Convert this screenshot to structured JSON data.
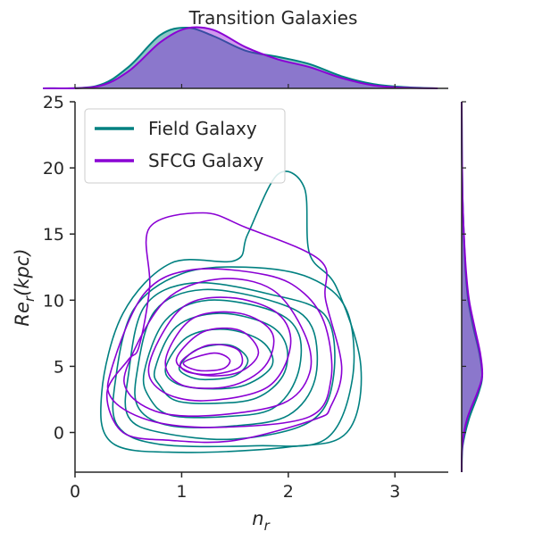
{
  "chart_data": {
    "type": "kde-joint",
    "title": "Transition Galaxies",
    "xlabel_base": "n",
    "xlabel_sub": "r",
    "ylabel_base": "Re",
    "ylabel_sub": "r",
    "ylabel_suffix": "(kpc)",
    "xlim": [
      0,
      3.5
    ],
    "ylim": [
      -3,
      25
    ],
    "xticks": [
      0,
      1,
      2,
      3
    ],
    "yticks": [
      0,
      5,
      10,
      15,
      20,
      25
    ],
    "grid": false,
    "legend_placement": "top-left",
    "series": [
      {
        "name": "Field Galaxy",
        "color": "#008080",
        "contours": [
          [
            [
              0.25,
              3
            ],
            [
              0.45,
              9
            ],
            [
              0.9,
              12.8
            ],
            [
              1.5,
              13
            ],
            [
              1.62,
              15
            ],
            [
              1.9,
              19.5
            ],
            [
              2.15,
              18.5
            ],
            [
              2.2,
              13.5
            ],
            [
              2.45,
              11
            ],
            [
              2.68,
              5
            ],
            [
              2.55,
              0
            ],
            [
              2,
              -1.1
            ],
            [
              1,
              -1.5
            ],
            [
              0.35,
              -0.8
            ]
          ],
          [
            [
              0.38,
              4
            ],
            [
              0.55,
              9.3
            ],
            [
              1,
              12
            ],
            [
              1.6,
              12.5
            ],
            [
              2.2,
              11.7
            ],
            [
              2.55,
              9.2
            ],
            [
              2.6,
              4
            ],
            [
              2.35,
              -0.5
            ],
            [
              1.7,
              -1
            ],
            [
              0.8,
              -0.9
            ],
            [
              0.4,
              0.5
            ]
          ],
          [
            [
              0.5,
              4.3
            ],
            [
              0.65,
              9.5
            ],
            [
              1.1,
              11.3
            ],
            [
              1.8,
              10.5
            ],
            [
              2.35,
              8.8
            ],
            [
              2.42,
              4
            ],
            [
              2.2,
              0.8
            ],
            [
              1.5,
              -0.5
            ],
            [
              0.8,
              0
            ],
            [
              0.5,
              1.2
            ]
          ],
          [
            [
              0.58,
              4.5
            ],
            [
              0.75,
              9.2
            ],
            [
              1.2,
              10.8
            ],
            [
              1.9,
              9.8
            ],
            [
              2.22,
              8
            ],
            [
              2.25,
              4
            ],
            [
              2,
              1.3
            ],
            [
              1.5,
              0.5
            ],
            [
              0.9,
              0.5
            ],
            [
              0.6,
              1.8
            ]
          ],
          [
            [
              0.65,
              4.6
            ],
            [
              0.85,
              8.5
            ],
            [
              1.25,
              10
            ],
            [
              1.85,
              9.2
            ],
            [
              2.1,
              7.4
            ],
            [
              2.08,
              4.2
            ],
            [
              1.85,
              1.8
            ],
            [
              1.4,
              1.2
            ],
            [
              0.9,
              1.3
            ],
            [
              0.7,
              2.6
            ]
          ],
          [
            [
              0.75,
              4.8
            ],
            [
              0.95,
              8
            ],
            [
              1.35,
              9
            ],
            [
              1.8,
              8.2
            ],
            [
              1.98,
              6.6
            ],
            [
              1.95,
              4.3
            ],
            [
              1.7,
              2.6
            ],
            [
              1.3,
              2.2
            ],
            [
              0.95,
              2.4
            ],
            [
              0.8,
              3.5
            ]
          ],
          [
            [
              0.85,
              4.9
            ],
            [
              1.05,
              7.2
            ],
            [
              1.4,
              7.8
            ],
            [
              1.75,
              6.9
            ],
            [
              1.85,
              5.1
            ],
            [
              1.6,
              3.6
            ],
            [
              1.25,
              3.3
            ],
            [
              0.95,
              3.7
            ]
          ],
          [
            [
              0.98,
              5
            ],
            [
              1.15,
              6.3
            ],
            [
              1.45,
              6.6
            ],
            [
              1.62,
              5.5
            ],
            [
              1.5,
              4.3
            ],
            [
              1.22,
              4
            ],
            [
              1.05,
              4.3
            ]
          ]
        ]
      },
      {
        "name": "SFCG Galaxy",
        "color": "#8a00d4",
        "contours": [
          [
            [
              0.6,
              6.5
            ],
            [
              0.7,
              11
            ],
            [
              0.7,
              15.5
            ],
            [
              1.2,
              16.6
            ],
            [
              1.6,
              15.5
            ],
            [
              2.3,
              13
            ],
            [
              2.35,
              10
            ],
            [
              2.5,
              5
            ],
            [
              2.4,
              2
            ],
            [
              2.25,
              1
            ],
            [
              1.5,
              -0.6
            ],
            [
              0.9,
              -0.6
            ],
            [
              0.45,
              0
            ],
            [
              0.3,
              3
            ],
            [
              0.5,
              5.5
            ]
          ],
          [
            [
              0.35,
              5
            ],
            [
              0.65,
              10.5
            ],
            [
              1.1,
              12.3
            ],
            [
              1.8,
              11.9
            ],
            [
              2.15,
              10.5
            ],
            [
              2.35,
              8
            ],
            [
              2.4,
              4
            ],
            [
              2.2,
              1.2
            ],
            [
              1.4,
              0.4
            ],
            [
              0.75,
              0.8
            ],
            [
              0.35,
              2.5
            ]
          ],
          [
            [
              0.5,
              5.2
            ],
            [
              0.85,
              10
            ],
            [
              1.35,
              11.6
            ],
            [
              1.85,
              10.8
            ],
            [
              2.15,
              7.5
            ],
            [
              2.2,
              4.5
            ],
            [
              1.95,
              2.2
            ],
            [
              1.3,
              1.3
            ],
            [
              0.8,
              1.5
            ],
            [
              0.5,
              3
            ]
          ],
          [
            [
              0.7,
              5.3
            ],
            [
              1,
              9.4
            ],
            [
              1.45,
              10.2
            ],
            [
              1.9,
              9
            ],
            [
              2.02,
              6.5
            ],
            [
              1.8,
              3.4
            ],
            [
              1.2,
              2.4
            ],
            [
              0.8,
              3.2
            ]
          ],
          [
            [
              0.85,
              5.5
            ],
            [
              1.1,
              8.6
            ],
            [
              1.55,
              9
            ],
            [
              1.85,
              7.5
            ],
            [
              1.78,
              5
            ],
            [
              1.45,
              3.5
            ],
            [
              1,
              3.6
            ]
          ],
          [
            [
              0.95,
              5.5
            ],
            [
              1.2,
              7.6
            ],
            [
              1.55,
              7.7
            ],
            [
              1.72,
              6
            ],
            [
              1.52,
              4.5
            ],
            [
              1.15,
              4.4
            ]
          ],
          [
            [
              1,
              5.4
            ],
            [
              1.25,
              6.6
            ],
            [
              1.52,
              6.3
            ],
            [
              1.55,
              5
            ],
            [
              1.3,
              4.4
            ],
            [
              1.05,
              4.6
            ]
          ],
          [
            [
              1.02,
              5.3
            ],
            [
              1.3,
              6
            ],
            [
              1.45,
              5.5
            ],
            [
              1.38,
              4.8
            ],
            [
              1.15,
              4.7
            ]
          ]
        ]
      }
    ],
    "marginal_x": [
      {
        "name": "Field Galaxy",
        "x": [
          -0.3,
          0.2,
          0.5,
          0.8,
          1.05,
          1.3,
          1.6,
          1.9,
          2.2,
          2.5,
          2.8,
          3.1,
          3.4
        ],
        "density": [
          0,
          0.04,
          0.35,
          0.88,
          1.0,
          0.86,
          0.62,
          0.52,
          0.4,
          0.2,
          0.07,
          0.02,
          0
        ]
      },
      {
        "name": "SFCG Galaxy",
        "x": [
          -0.3,
          0.2,
          0.5,
          0.8,
          1.05,
          1.3,
          1.6,
          1.9,
          2.2,
          2.5,
          2.8,
          3.1,
          3.4
        ],
        "density": [
          0,
          0.03,
          0.28,
          0.76,
          0.99,
          0.96,
          0.68,
          0.48,
          0.35,
          0.17,
          0.05,
          0.01,
          0
        ]
      }
    ],
    "marginal_y": [
      {
        "name": "Field Galaxy",
        "y": [
          -3,
          -1,
          1,
          3,
          4.3,
          6,
          8,
          10,
          12,
          14,
          16,
          18,
          20,
          22,
          25
        ],
        "density": [
          0,
          0.05,
          0.35,
          0.82,
          1.0,
          0.86,
          0.56,
          0.32,
          0.2,
          0.13,
          0.08,
          0.04,
          0.02,
          0.01,
          0
        ]
      },
      {
        "name": "SFCG Galaxy",
        "y": [
          -3,
          -1,
          1,
          3,
          4.3,
          6,
          8,
          10,
          12,
          14,
          16,
          18,
          20,
          22,
          25
        ],
        "density": [
          0,
          0.03,
          0.26,
          0.76,
          1.0,
          0.9,
          0.62,
          0.36,
          0.22,
          0.14,
          0.08,
          0.04,
          0.02,
          0.01,
          0
        ]
      }
    ]
  }
}
